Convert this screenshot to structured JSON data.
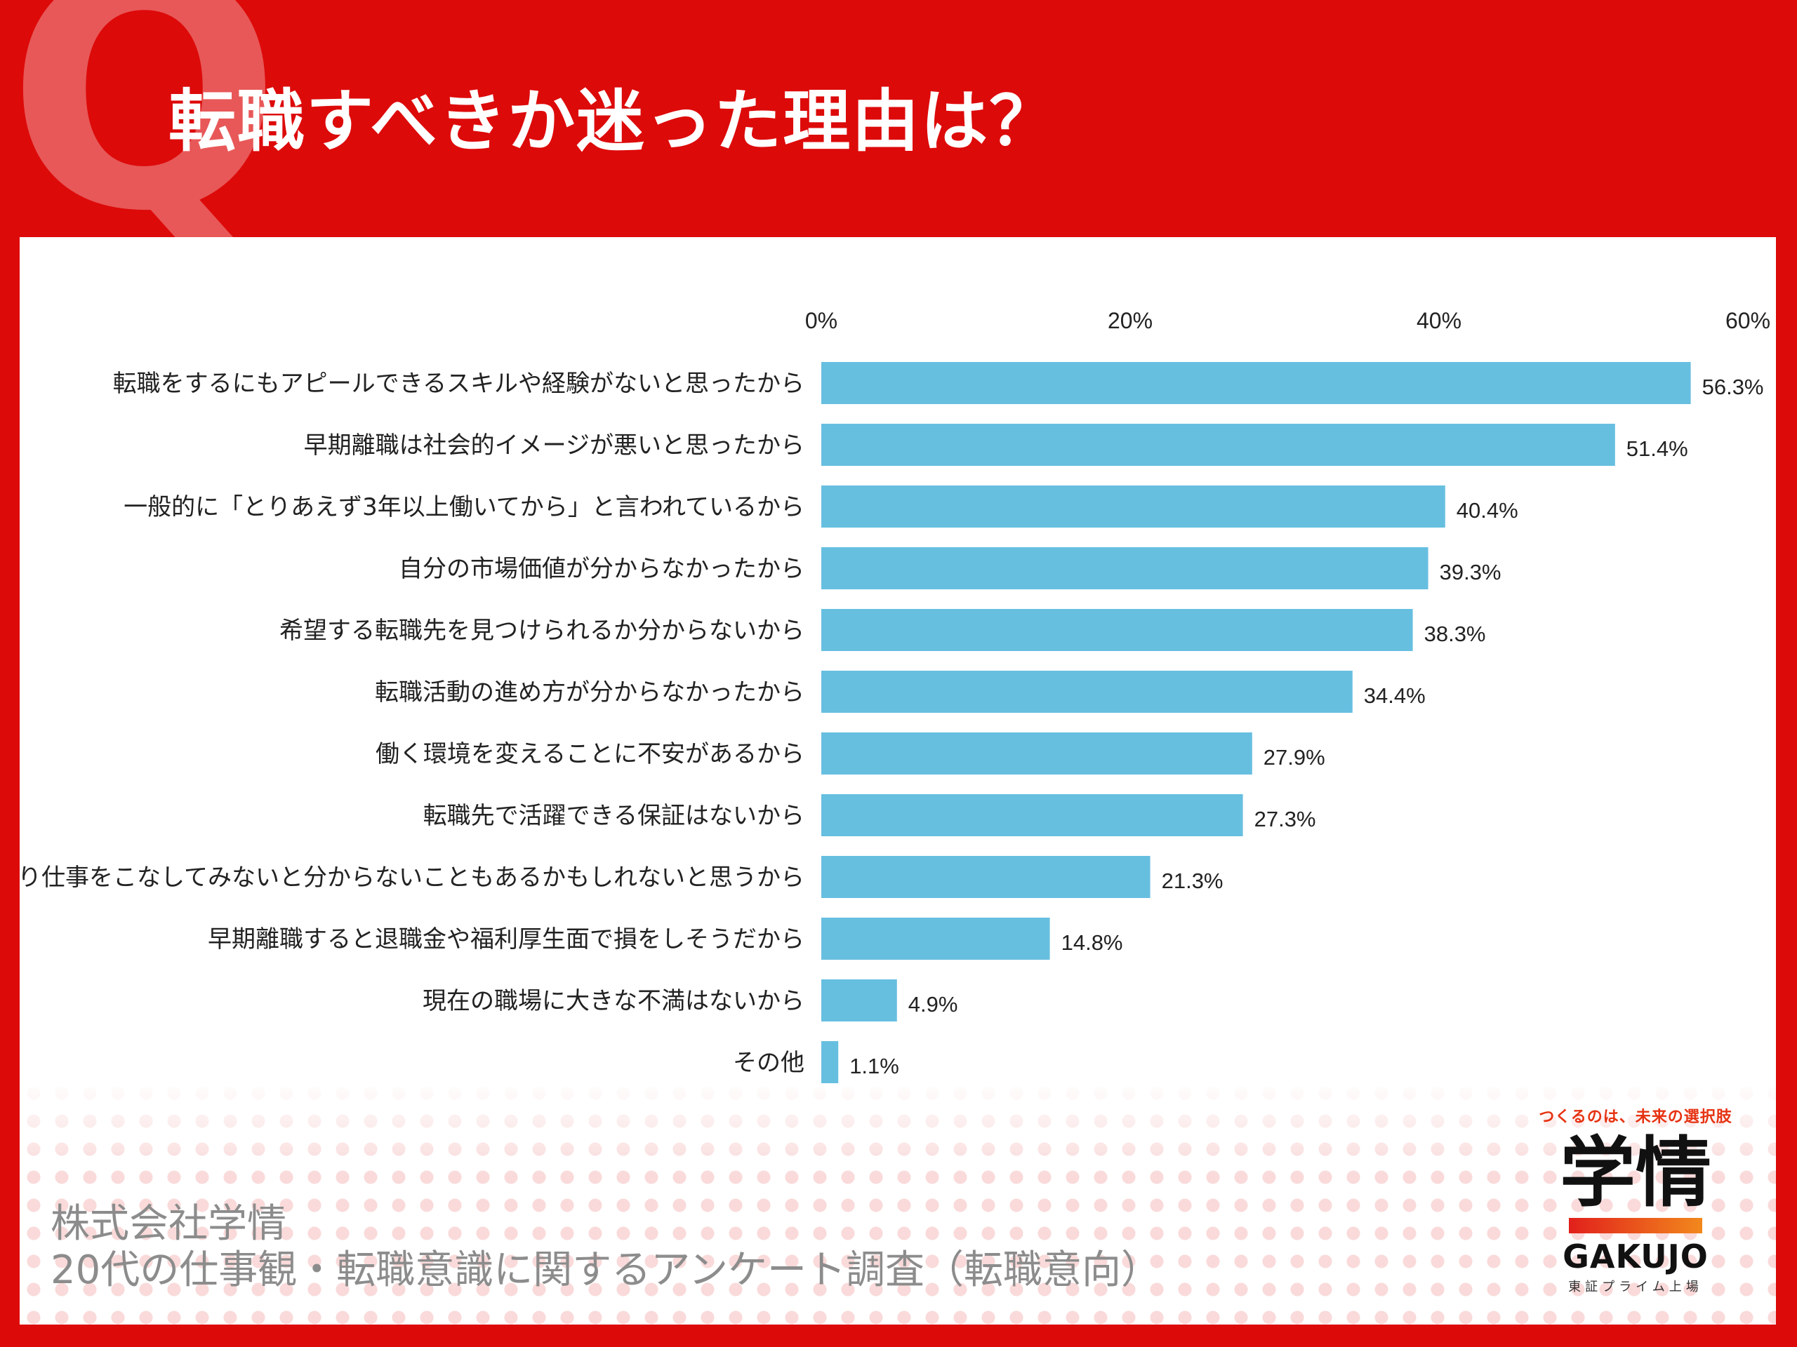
{
  "header": {
    "q_mark": "Q",
    "title": "転職すべきか迷った理由は？"
  },
  "chart_data": {
    "type": "bar",
    "orientation": "horizontal",
    "title": "転職すべきか迷った理由は？",
    "xlim": [
      0,
      60
    ],
    "ticks": [
      "0%",
      "20%",
      "40%",
      "60%"
    ],
    "tick_values": [
      0,
      20,
      40,
      60
    ],
    "grid": false,
    "bar_color": "#67bfe0",
    "categories": [
      "転職をするにもアピールできるスキルや経験がないと思ったから",
      "早期離職は社会的イメージが悪いと思ったから",
      "一般的に「とりあえず3年以上働いてから」と言われているから",
      "自分の市場価値が分からなかったから",
      "希望する転職先を見つけられるか分からないから",
      "転職活動の進め方が分からなかったから",
      "働く環境を変えることに不安があるから",
      "転職先で活躍できる保証はないから",
      "一通り仕事をこなしてみないと分からないこともあるかもしれないと思うから",
      "早期離職すると退職金や福利厚生面で損をしそうだから",
      "現在の職場に大きな不満はないから",
      "その他"
    ],
    "values": [
      56.3,
      51.4,
      40.4,
      39.3,
      38.3,
      34.4,
      27.9,
      27.3,
      21.3,
      14.8,
      4.9,
      1.1
    ],
    "value_labels": [
      "56.3%",
      "51.4%",
      "40.4%",
      "39.3%",
      "38.3%",
      "34.4%",
      "27.9%",
      "27.3%",
      "21.3%",
      "14.8%",
      "4.9%",
      "1.1%"
    ]
  },
  "footer": {
    "company": "株式会社学情",
    "survey": "20代の仕事観・転職意識に関するアンケート調査（転職意向）"
  },
  "logo": {
    "tagline": "つくるのは、未来の選択肢",
    "name_kanji": "学情",
    "name_en": "GAKUJO",
    "listing": "東証プライム上場"
  },
  "colors": {
    "background": "#dd0a0a",
    "bar": "#67bfe0",
    "accent": "#e63312"
  }
}
